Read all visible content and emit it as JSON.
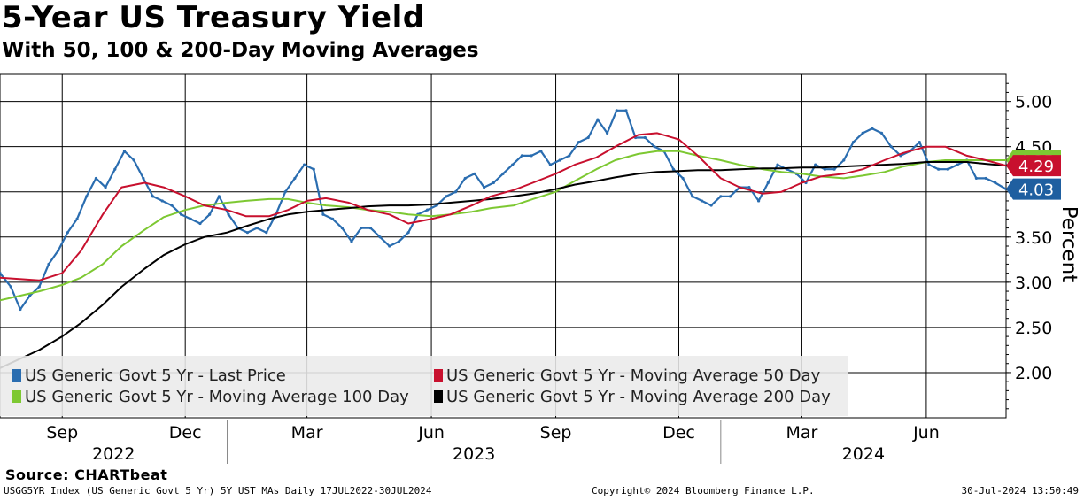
{
  "header": {
    "title": "5-Year US Treasury Yield",
    "subtitle": "With 50, 100 & 200-Day Moving Averages"
  },
  "footer": {
    "source": "Source: CHARTbeat",
    "index_info": "USGG5YR Index (US Generic Govt 5 Yr) 5Y UST MAs  Daily 17JUL2022-30JUL2024",
    "copyright": "Copyright© 2024 Bloomberg Finance L.P.",
    "timestamp": "30-Jul-2024 13:50:49"
  },
  "chart_data": {
    "type": "line",
    "title": "5-Year US Treasury Yield",
    "subtitle": "With 50, 100 & 200-Day Moving Averages",
    "ylabel": "Percent",
    "ylim": [
      1.5,
      5.3
    ],
    "yticks": [
      2.0,
      2.5,
      3.0,
      3.5,
      4.0,
      4.5,
      5.0
    ],
    "ytick_labels": [
      "2.00",
      "2.50",
      "3.00",
      "3.50",
      "4.00",
      "4.50",
      "5.00"
    ],
    "xlim": [
      "2022-07-17",
      "2024-07-30"
    ],
    "x_month_labels": [
      {
        "date": "2022-09-01",
        "label": "Sep"
      },
      {
        "date": "2022-12-01",
        "label": "Dec"
      },
      {
        "date": "2023-03-01",
        "label": "Mar"
      },
      {
        "date": "2023-06-01",
        "label": "Jun"
      },
      {
        "date": "2023-09-01",
        "label": "Sep"
      },
      {
        "date": "2023-12-01",
        "label": "Dec"
      },
      {
        "date": "2024-03-01",
        "label": "Mar"
      },
      {
        "date": "2024-06-01",
        "label": "Jun"
      }
    ],
    "x_year_labels": [
      {
        "label": "2022",
        "start": "2022-07-17",
        "end": "2023-01-01"
      },
      {
        "label": "2023",
        "start": "2023-01-01",
        "end": "2024-01-01"
      },
      {
        "label": "2024",
        "start": "2024-01-01",
        "end": "2024-07-30"
      }
    ],
    "grid": true,
    "legend_position": "bottom-left",
    "last_values": [
      {
        "label": "4.35",
        "value": 4.35,
        "color": "#7dc832"
      },
      {
        "label": "4.29",
        "value": 4.29,
        "color": "#c8102e"
      },
      {
        "label": "4.03",
        "value": 4.03,
        "color": "#1f5fa0"
      }
    ],
    "series": [
      {
        "name": "US Generic Govt 5 Yr - Last Price",
        "color": "#2a6db0",
        "x": [
          "2022-07-17",
          "2022-07-25",
          "2022-08-01",
          "2022-08-08",
          "2022-08-15",
          "2022-08-22",
          "2022-08-29",
          "2022-09-05",
          "2022-09-12",
          "2022-09-19",
          "2022-09-26",
          "2022-10-03",
          "2022-10-10",
          "2022-10-17",
          "2022-10-24",
          "2022-10-31",
          "2022-11-07",
          "2022-11-14",
          "2022-11-21",
          "2022-11-28",
          "2022-12-05",
          "2022-12-12",
          "2022-12-19",
          "2022-12-26",
          "2023-01-02",
          "2023-01-09",
          "2023-01-16",
          "2023-01-23",
          "2023-01-30",
          "2023-02-06",
          "2023-02-13",
          "2023-02-20",
          "2023-02-27",
          "2023-03-06",
          "2023-03-13",
          "2023-03-20",
          "2023-03-27",
          "2023-04-03",
          "2023-04-10",
          "2023-04-17",
          "2023-04-24",
          "2023-05-01",
          "2023-05-08",
          "2023-05-15",
          "2023-05-22",
          "2023-05-29",
          "2023-06-05",
          "2023-06-12",
          "2023-06-19",
          "2023-06-26",
          "2023-07-03",
          "2023-07-10",
          "2023-07-17",
          "2023-07-24",
          "2023-07-31",
          "2023-08-07",
          "2023-08-14",
          "2023-08-21",
          "2023-08-28",
          "2023-09-04",
          "2023-09-11",
          "2023-09-18",
          "2023-09-25",
          "2023-10-02",
          "2023-10-09",
          "2023-10-16",
          "2023-10-23",
          "2023-10-30",
          "2023-11-06",
          "2023-11-13",
          "2023-11-20",
          "2023-11-27",
          "2023-12-04",
          "2023-12-11",
          "2023-12-18",
          "2023-12-25",
          "2024-01-01",
          "2024-01-08",
          "2024-01-15",
          "2024-01-22",
          "2024-01-29",
          "2024-02-05",
          "2024-02-12",
          "2024-02-19",
          "2024-02-26",
          "2024-03-04",
          "2024-03-11",
          "2024-03-18",
          "2024-03-25",
          "2024-04-01",
          "2024-04-08",
          "2024-04-15",
          "2024-04-22",
          "2024-04-29",
          "2024-05-06",
          "2024-05-13",
          "2024-05-20",
          "2024-05-27",
          "2024-06-03",
          "2024-06-10",
          "2024-06-17",
          "2024-06-24",
          "2024-07-01",
          "2024-07-08",
          "2024-07-15",
          "2024-07-22",
          "2024-07-30"
        ],
        "values": [
          3.1,
          2.95,
          2.7,
          2.85,
          2.95,
          3.2,
          3.35,
          3.55,
          3.7,
          3.95,
          4.15,
          4.05,
          4.25,
          4.45,
          4.35,
          4.15,
          3.95,
          3.9,
          3.85,
          3.75,
          3.7,
          3.65,
          3.75,
          3.95,
          3.75,
          3.6,
          3.55,
          3.6,
          3.55,
          3.75,
          4.0,
          4.15,
          4.3,
          4.25,
          3.75,
          3.7,
          3.6,
          3.45,
          3.6,
          3.6,
          3.5,
          3.4,
          3.45,
          3.55,
          3.75,
          3.8,
          3.85,
          3.95,
          4.0,
          4.15,
          4.2,
          4.05,
          4.1,
          4.2,
          4.3,
          4.4,
          4.4,
          4.45,
          4.3,
          4.35,
          4.4,
          4.55,
          4.6,
          4.8,
          4.65,
          4.9,
          4.9,
          4.6,
          4.6,
          4.5,
          4.45,
          4.25,
          4.15,
          3.95,
          3.9,
          3.85,
          3.95,
          3.95,
          4.05,
          4.05,
          3.9,
          4.1,
          4.3,
          4.25,
          4.2,
          4.1,
          4.3,
          4.25,
          4.25,
          4.35,
          4.55,
          4.65,
          4.7,
          4.65,
          4.5,
          4.4,
          4.45,
          4.55,
          4.3,
          4.25,
          4.25,
          4.3,
          4.35,
          4.15,
          4.15,
          4.1,
          4.03
        ]
      },
      {
        "name": "US Generic Govt 5 Yr - Moving Average 50 Day",
        "color": "#c8102e",
        "x": [
          "2022-07-17",
          "2022-08-15",
          "2022-09-01",
          "2022-09-15",
          "2022-10-01",
          "2022-10-15",
          "2022-11-01",
          "2022-11-15",
          "2022-12-01",
          "2022-12-15",
          "2023-01-01",
          "2023-01-15",
          "2023-02-01",
          "2023-02-15",
          "2023-03-01",
          "2023-03-15",
          "2023-04-01",
          "2023-04-15",
          "2023-05-01",
          "2023-05-15",
          "2023-06-01",
          "2023-06-15",
          "2023-07-01",
          "2023-07-15",
          "2023-08-01",
          "2023-08-15",
          "2023-09-01",
          "2023-09-15",
          "2023-10-01",
          "2023-10-15",
          "2023-11-01",
          "2023-11-15",
          "2023-12-01",
          "2023-12-15",
          "2024-01-01",
          "2024-01-15",
          "2024-02-01",
          "2024-02-15",
          "2024-03-01",
          "2024-03-15",
          "2024-04-01",
          "2024-04-15",
          "2024-05-01",
          "2024-05-15",
          "2024-06-01",
          "2024-06-15",
          "2024-07-01",
          "2024-07-15",
          "2024-07-30"
        ],
        "values": [
          3.05,
          3.02,
          3.1,
          3.35,
          3.75,
          4.05,
          4.1,
          4.05,
          3.95,
          3.85,
          3.8,
          3.73,
          3.73,
          3.8,
          3.9,
          3.93,
          3.88,
          3.8,
          3.75,
          3.65,
          3.7,
          3.75,
          3.85,
          3.95,
          4.02,
          4.1,
          4.2,
          4.3,
          4.38,
          4.5,
          4.63,
          4.65,
          4.58,
          4.4,
          4.15,
          4.05,
          3.98,
          4.0,
          4.1,
          4.17,
          4.2,
          4.25,
          4.35,
          4.43,
          4.5,
          4.5,
          4.4,
          4.35,
          4.29
        ]
      },
      {
        "name": "US Generic Govt 5 Yr - Moving Average 100 Day",
        "color": "#7dc832",
        "x": [
          "2022-07-17",
          "2022-08-15",
          "2022-09-01",
          "2022-09-15",
          "2022-10-01",
          "2022-10-15",
          "2022-11-01",
          "2022-11-15",
          "2022-12-01",
          "2022-12-15",
          "2023-01-01",
          "2023-01-15",
          "2023-02-01",
          "2023-02-15",
          "2023-03-01",
          "2023-03-15",
          "2023-04-01",
          "2023-04-15",
          "2023-05-01",
          "2023-05-15",
          "2023-06-01",
          "2023-06-15",
          "2023-07-01",
          "2023-07-15",
          "2023-08-01",
          "2023-08-15",
          "2023-09-01",
          "2023-09-15",
          "2023-10-01",
          "2023-10-15",
          "2023-11-01",
          "2023-11-15",
          "2023-12-01",
          "2023-12-15",
          "2024-01-01",
          "2024-01-15",
          "2024-02-01",
          "2024-02-15",
          "2024-03-01",
          "2024-03-15",
          "2024-04-01",
          "2024-04-15",
          "2024-05-01",
          "2024-05-15",
          "2024-06-01",
          "2024-06-15",
          "2024-07-01",
          "2024-07-15",
          "2024-07-30"
        ],
        "values": [
          2.8,
          2.9,
          2.97,
          3.05,
          3.2,
          3.4,
          3.58,
          3.72,
          3.8,
          3.85,
          3.88,
          3.9,
          3.92,
          3.92,
          3.88,
          3.85,
          3.83,
          3.8,
          3.78,
          3.75,
          3.73,
          3.75,
          3.78,
          3.82,
          3.85,
          3.92,
          4.0,
          4.12,
          4.25,
          4.35,
          4.42,
          4.45,
          4.45,
          4.4,
          4.35,
          4.3,
          4.25,
          4.22,
          4.2,
          4.17,
          4.15,
          4.18,
          4.22,
          4.28,
          4.33,
          4.35,
          4.35,
          4.35,
          4.35
        ]
      },
      {
        "name": "US Generic Govt 5 Yr - Moving Average 200 Day",
        "color": "#000000",
        "x": [
          "2022-07-17",
          "2022-08-15",
          "2022-09-01",
          "2022-09-15",
          "2022-10-01",
          "2022-10-15",
          "2022-11-01",
          "2022-11-15",
          "2022-12-01",
          "2022-12-15",
          "2023-01-01",
          "2023-01-15",
          "2023-02-01",
          "2023-02-15",
          "2023-03-01",
          "2023-03-15",
          "2023-04-01",
          "2023-04-15",
          "2023-05-01",
          "2023-05-15",
          "2023-06-01",
          "2023-06-15",
          "2023-07-01",
          "2023-07-15",
          "2023-08-01",
          "2023-08-15",
          "2023-09-01",
          "2023-09-15",
          "2023-10-01",
          "2023-10-15",
          "2023-11-01",
          "2023-11-15",
          "2023-12-01",
          "2023-12-15",
          "2024-01-01",
          "2024-01-15",
          "2024-02-01",
          "2024-02-15",
          "2024-03-01",
          "2024-03-15",
          "2024-04-01",
          "2024-04-15",
          "2024-05-01",
          "2024-05-15",
          "2024-06-01",
          "2024-06-15",
          "2024-07-01",
          "2024-07-15",
          "2024-07-30"
        ],
        "values": [
          2.05,
          2.25,
          2.4,
          2.55,
          2.75,
          2.95,
          3.15,
          3.3,
          3.42,
          3.5,
          3.55,
          3.62,
          3.7,
          3.75,
          3.78,
          3.8,
          3.82,
          3.84,
          3.85,
          3.85,
          3.86,
          3.88,
          3.9,
          3.92,
          3.95,
          3.98,
          4.03,
          4.08,
          4.12,
          4.16,
          4.2,
          4.22,
          4.23,
          4.24,
          4.24,
          4.25,
          4.26,
          4.26,
          4.27,
          4.27,
          4.28,
          4.29,
          4.3,
          4.31,
          4.33,
          4.33,
          4.33,
          4.31,
          4.29
        ]
      }
    ]
  }
}
